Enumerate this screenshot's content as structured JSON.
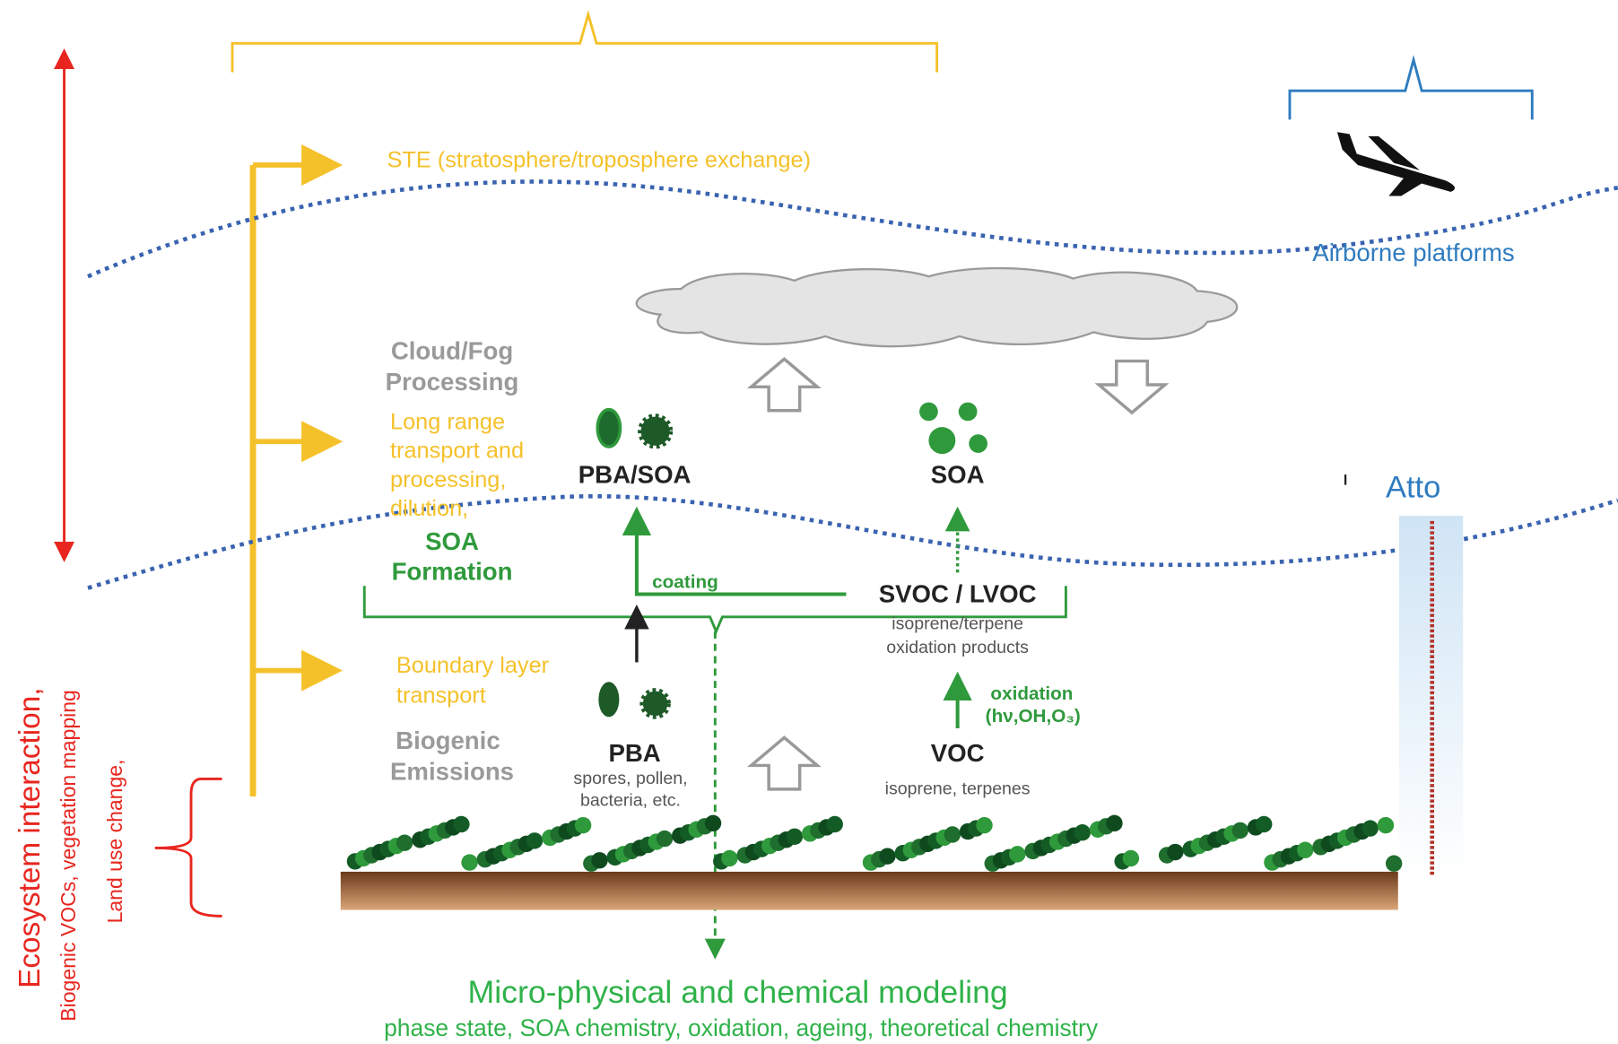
{
  "labels": {
    "ste": "STE (stratosphere/troposphere exchange)",
    "airborne": "Airborne platforms",
    "atto": "Atto",
    "cloud_fog": [
      "Cloud/Fog",
      "Processing"
    ],
    "long_range": [
      "Long range",
      "transport and",
      "processing,",
      "dilution,"
    ],
    "soa_formation": [
      "SOA",
      "Formation"
    ],
    "pba_soa": "PBA/SOA",
    "soa": "SOA",
    "coating": "coating",
    "svoc_lvoc": "SVOC / LVOC",
    "svoc_desc": [
      "isoprene/terpene",
      "oxidation products"
    ],
    "oxidation": "oxidation",
    "oxidants": "(hν,OH,O₃)",
    "boundary": [
      "Boundary layer",
      "transport"
    ],
    "biogenic": [
      "Biogenic",
      "Emissions"
    ],
    "pba": "PBA",
    "pba_desc": [
      "spores, pollen,",
      "bacteria, etc."
    ],
    "voc": "VOC",
    "voc_desc": "isoprene, terpenes",
    "modeling": "Micro-physical and chemical modeling",
    "modeling_desc": "phase state, SOA chemistry, oxidation, ageing, theoretical chemistry",
    "ecosystem": "Ecosystem interaction,",
    "ecosystem_sub1": "Biogenic VOCs,  vegetation mapping",
    "ecosystem_sub2": "Land use change,"
  }
}
